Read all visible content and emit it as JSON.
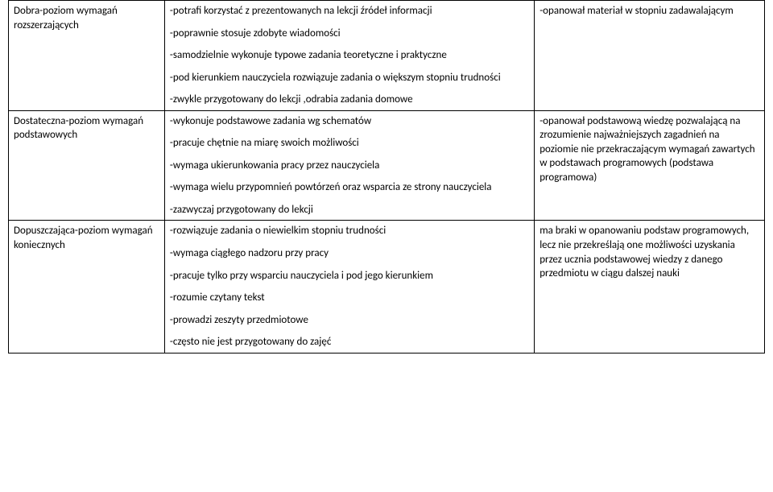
{
  "rows": [
    {
      "col1": "Dobra-poziom wymagań rozszerzających",
      "col2": [
        "-potrafi korzystać z prezentowanych na lekcji źródeł informacji",
        "-poprawnie stosuje zdobyte wiadomości",
        "-samodzielnie wykonuje typowe zadania teoretyczne i praktyczne",
        "-pod kierunkiem nauczyciela rozwiązuje zadania o większym stopniu trudności",
        "-zwykle przygotowany do lekcji ,odrabia zadania domowe"
      ],
      "col3": "-opanował materiał w  stopniu zadawalającym"
    },
    {
      "col1": "Dostateczna-poziom wymagań podstawowych",
      "col2": [
        "-wykonuje podstawowe zadania wg schematów",
        "-pracuje chętnie na miarę swoich możliwości",
        "-wymaga ukierunkowania pracy przez nauczyciela",
        "-wymaga wielu przypomnień powtórzeń oraz wsparcia ze strony nauczyciela",
        "-zazwyczaj przygotowany do lekcji"
      ],
      "col3": "-opanował podstawową wiedzę pozwalającą na zrozumienie najważniejszych zagadnień na poziomie nie przekraczającym wymagań zawartych w podstawach programowych (podstawa programowa)"
    },
    {
      "col1": "Dopuszczająca-poziom wymagań koniecznych",
      "col2": [
        "-rozwiązuje zadania o niewielkim stopniu trudności",
        "-wymaga ciągłego nadzoru przy pracy",
        "-pracuje tylko przy wsparciu nauczyciela i pod jego kierunkiem",
        "-rozumie czytany tekst",
        "-prowadzi zeszyty przedmiotowe",
        "-często nie jest przygotowany do zajęć"
      ],
      "col3": "ma braki w opanowaniu podstaw programowych, lecz nie przekreślają one możliwości uzyskania przez ucznia podstawowej wiedzy z danego przedmiotu w ciągu dalszej nauki"
    }
  ]
}
